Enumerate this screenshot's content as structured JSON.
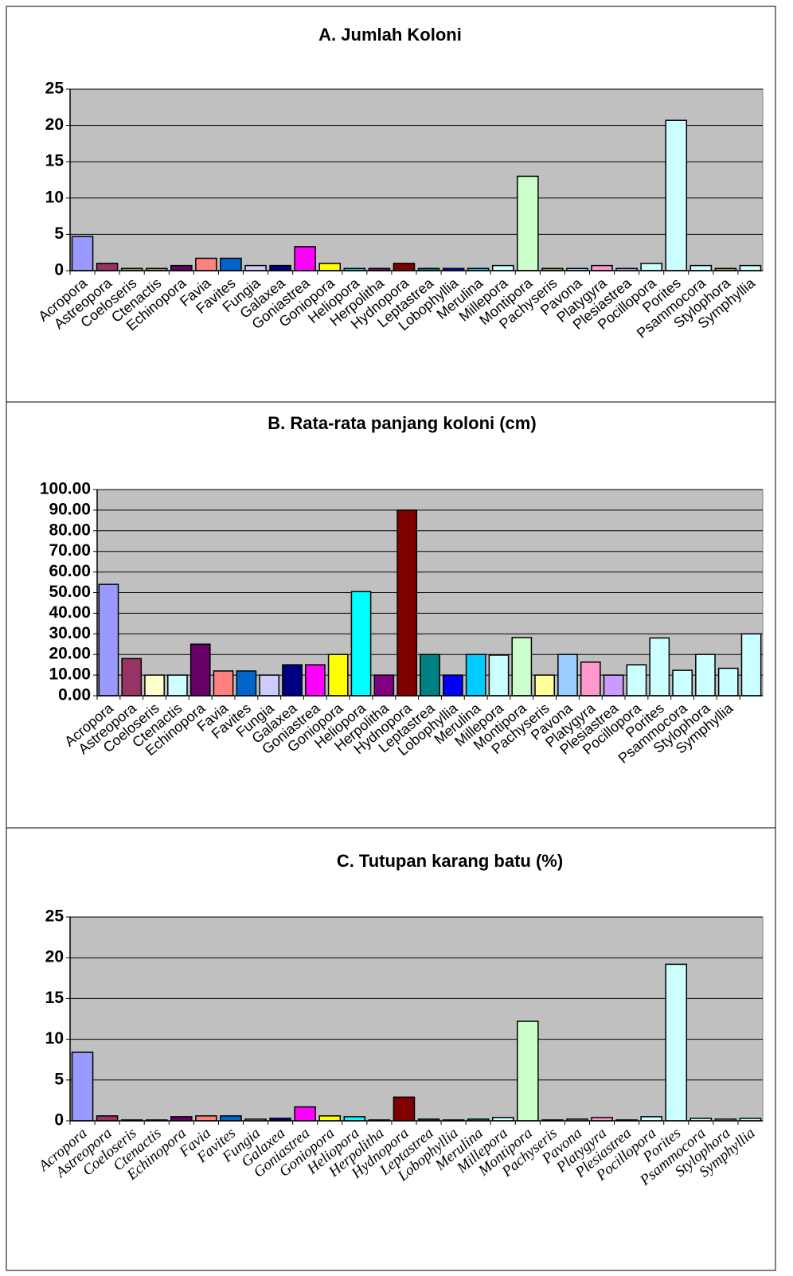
{
  "chart_data": [
    {
      "type": "bar",
      "title": "A. Jumlah Koloni",
      "categories": [
        "Acropora",
        "Astreopora",
        "Coeloseris",
        "Ctenactis",
        "Echinopora",
        "Favia",
        "Favites",
        "Fungia",
        "Galaxea",
        "Goniastrea",
        "Goniopora",
        "Heliopora",
        "Herpolitha",
        "Hydnopora",
        "Leptastrea",
        "Lobophyllia",
        "Merulina",
        "Millepora",
        "Montipora",
        "Pachyseris",
        "Pavona",
        "Platygyra",
        "Plesiastrea",
        "Pocillopora",
        "Porites",
        "Psammocora",
        "Stylophora",
        "Symphyllia"
      ],
      "values": [
        4.7,
        1,
        0.3,
        0.3,
        0.7,
        1.7,
        1.7,
        0.7,
        0.7,
        3.3,
        1,
        0.3,
        0.3,
        1,
        0.3,
        0.3,
        0.3,
        0.7,
        13,
        0.3,
        0.3,
        0.7,
        0.3,
        1,
        20.7,
        0.7,
        0.3,
        0.7
      ],
      "colors": [
        "#9999ff",
        "#993366",
        "#999966",
        "#999966",
        "#660066",
        "#ff8080",
        "#0066cc",
        "#ccccff",
        "#000080",
        "#ff00ff",
        "#ffff00",
        "#00cccc",
        "#800080",
        "#800000",
        "#008080",
        "#0000ff",
        "#00ccff",
        "#ccffff",
        "#ccffcc",
        "#999966",
        "#99ccff",
        "#ff99cc",
        "#cc99ff",
        "#ccffff",
        "#ccffff",
        "#ccffff",
        "#999966",
        "#ccffff"
      ],
      "ylim": [
        0,
        25
      ],
      "yticks": [
        0,
        5,
        10,
        15,
        20,
        25
      ],
      "grid": true,
      "x_label_style": "normal"
    },
    {
      "type": "bar",
      "title": "B. Rata-rata panjang koloni (cm)",
      "categories": [
        "Acropora",
        "Astreopora",
        "Coeloseris",
        "Ctenactis",
        "Echinopora",
        "Favia",
        "Favites",
        "Fungia",
        "Galaxea",
        "Goniastrea",
        "Goniopora",
        "Heliopora",
        "Herpolitha",
        "Hydnopora",
        "Leptastrea",
        "Lobophyllia",
        "Merulina",
        "Millepora",
        "Montipora",
        "Pachyseris",
        "Pavona",
        "Platygyra",
        "Plesiastrea",
        "Pocillopora",
        "Porites",
        "Psammocora",
        "Stylophora",
        "Symphyllia",
        null
      ],
      "values": [
        54,
        18,
        10,
        10,
        25,
        12,
        12,
        10,
        15,
        15,
        20,
        50.5,
        10,
        90,
        20,
        10,
        20,
        19.7,
        28.2,
        10,
        20,
        16.3,
        10,
        15,
        28,
        12.3,
        20,
        13.3,
        30
      ],
      "colors": [
        "#9999ff",
        "#993366",
        "#ffffcc",
        "#ccffff",
        "#660066",
        "#ff8080",
        "#0066cc",
        "#ccccff",
        "#000080",
        "#ff00ff",
        "#ffff00",
        "#00ffff",
        "#800080",
        "#800000",
        "#008080",
        "#0000ff",
        "#00ccff",
        "#ccffff",
        "#ccffcc",
        "#ffff99",
        "#99ccff",
        "#ff99cc",
        "#cc99ff",
        "#ccffff",
        "#ccffff",
        "#ccffff",
        "#ccffff",
        "#ccffff",
        "#ccffff"
      ],
      "ylim": [
        0,
        100
      ],
      "yticks": [
        {
          "value": 0,
          "label": "0.00"
        },
        {
          "value": 10,
          "label": "10.00"
        },
        {
          "value": 20,
          "label": "20.00"
        },
        {
          "value": 30,
          "label": "30.00"
        },
        {
          "value": 40,
          "label": "40.00"
        },
        {
          "value": 50,
          "label": "50.00"
        },
        {
          "value": 60,
          "label": "60.00"
        },
        {
          "value": 70,
          "label": "70.00"
        },
        {
          "value": 80,
          "label": "80.00"
        },
        {
          "value": 90,
          "label": "90.00"
        },
        {
          "value": 100,
          "label": "100.00"
        }
      ],
      "grid": true,
      "x_label_style": "normal"
    },
    {
      "type": "bar",
      "title": "C. Tutupan karang batu (%)",
      "categories": [
        "Acropora",
        "Astreopora",
        "Coeloseris",
        "Ctenactis",
        "Echinopora",
        "Favia",
        "Favites",
        "Fungia",
        "Galaxea",
        "Goniastrea",
        "Goniopora",
        "Heliopora",
        "Herpolitha",
        "Hydnopora",
        "Leptastrea",
        "Lobophyllia",
        "Merulina",
        "Millepora",
        "Montipora",
        "Pachyseris",
        "Pavona",
        "Platygyra",
        "Plesiastrea",
        "Pocillopora",
        "Porites",
        "Psammocora",
        "Stylophora",
        "Symphyllia"
      ],
      "values": [
        8.4,
        0.6,
        0.1,
        0.1,
        0.5,
        0.6,
        0.6,
        0.2,
        0.3,
        1.7,
        0.6,
        0.5,
        0.1,
        2.9,
        0.2,
        0.1,
        0.2,
        0.4,
        12.2,
        0.1,
        0.2,
        0.4,
        0.1,
        0.5,
        19.2,
        0.3,
        0.2,
        0.3
      ],
      "colors": [
        "#9999ff",
        "#993366",
        "#ffffcc",
        "#ccffff",
        "#660066",
        "#ff8080",
        "#0066cc",
        "#ccccff",
        "#000080",
        "#ff00ff",
        "#ffff00",
        "#00ffff",
        "#800080",
        "#800000",
        "#008080",
        "#0000ff",
        "#00ccff",
        "#ccffff",
        "#ccffcc",
        "#ffff99",
        "#99ccff",
        "#ff99cc",
        "#cc99ff",
        "#ccffff",
        "#ccffff",
        "#ccffff",
        "#ccffff",
        "#ccffff"
      ],
      "ylim": [
        0,
        25
      ],
      "yticks": [
        0,
        5,
        10,
        15,
        20,
        25
      ],
      "grid": true,
      "x_label_style": "italic"
    }
  ]
}
